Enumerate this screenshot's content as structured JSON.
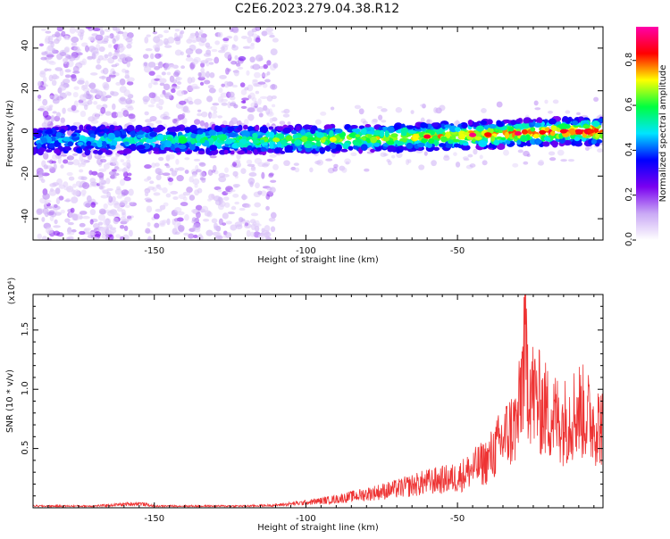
{
  "title": "C2E6.2023.279.04.38.R12",
  "chart_data": [
    {
      "type": "heatmap",
      "xlabel": "Height of straight line (km)",
      "ylabel": "Frequency (Hz)",
      "xlim": [
        -190,
        -2
      ],
      "ylim": [
        -50,
        50
      ],
      "xticks": [
        -150,
        -100,
        -50
      ],
      "xtick_labels": [
        "-150",
        "-100",
        "-50"
      ],
      "yticks": [
        -40,
        -20,
        0,
        20,
        40
      ],
      "ytick_labels": [
        "-40",
        "-20",
        "0",
        "20",
        "40"
      ],
      "ridge": {
        "description_points_x": [
          -190,
          -150,
          -100,
          -70,
          -50,
          -30,
          -15,
          -2
        ],
        "frequency_y": [
          -3,
          -3,
          -3,
          -2,
          -1,
          0,
          1,
          1
        ]
      },
      "colorbar": {
        "label": "Normalized spectral amplitude",
        "range": [
          0.0,
          0.95
        ],
        "ticks": [
          0.0,
          0.2,
          0.4,
          0.6,
          0.8
        ],
        "tick_labels": [
          "0.0",
          "0.2",
          "0.4",
          "0.6",
          "0.8"
        ],
        "colormap": [
          "#ffffff",
          "#c9a8f5",
          "#7a00f0",
          "#0000ff",
          "#00e5ff",
          "#00ff40",
          "#ffff00",
          "#ff0000",
          "#ff00aa"
        ]
      },
      "grid": false
    },
    {
      "type": "line",
      "xlabel": "Height of straight line (km)",
      "ylabel": "SNR (10 * v/v)",
      "yscale_label": "(x10⁴)",
      "xlim": [
        -190,
        -2
      ],
      "ylim": [
        0,
        1.8
      ],
      "xticks": [
        -150,
        -100,
        -50
      ],
      "xtick_labels": [
        "-150",
        "-100",
        "-50"
      ],
      "yticks": [
        0.5,
        1.0,
        1.5
      ],
      "ytick_labels": [
        "0.5",
        "1.0",
        "1.5"
      ],
      "series": [
        {
          "color": "#ee3333",
          "x": [
            -190,
            -170,
            -155,
            -150,
            -140,
            -120,
            -110,
            -100,
            -90,
            -80,
            -70,
            -60,
            -50,
            -45,
            -40,
            -35,
            -30,
            -28,
            -25,
            -20,
            -15,
            -10,
            -5,
            -2
          ],
          "y": [
            0.02,
            0.02,
            0.05,
            0.02,
            0.02,
            0.02,
            0.03,
            0.06,
            0.1,
            0.16,
            0.22,
            0.3,
            0.35,
            0.45,
            0.55,
            0.8,
            1.0,
            1.8,
            1.3,
            1.1,
            1.0,
            1.15,
            1.0,
            0.95
          ]
        }
      ],
      "grid": false
    }
  ]
}
